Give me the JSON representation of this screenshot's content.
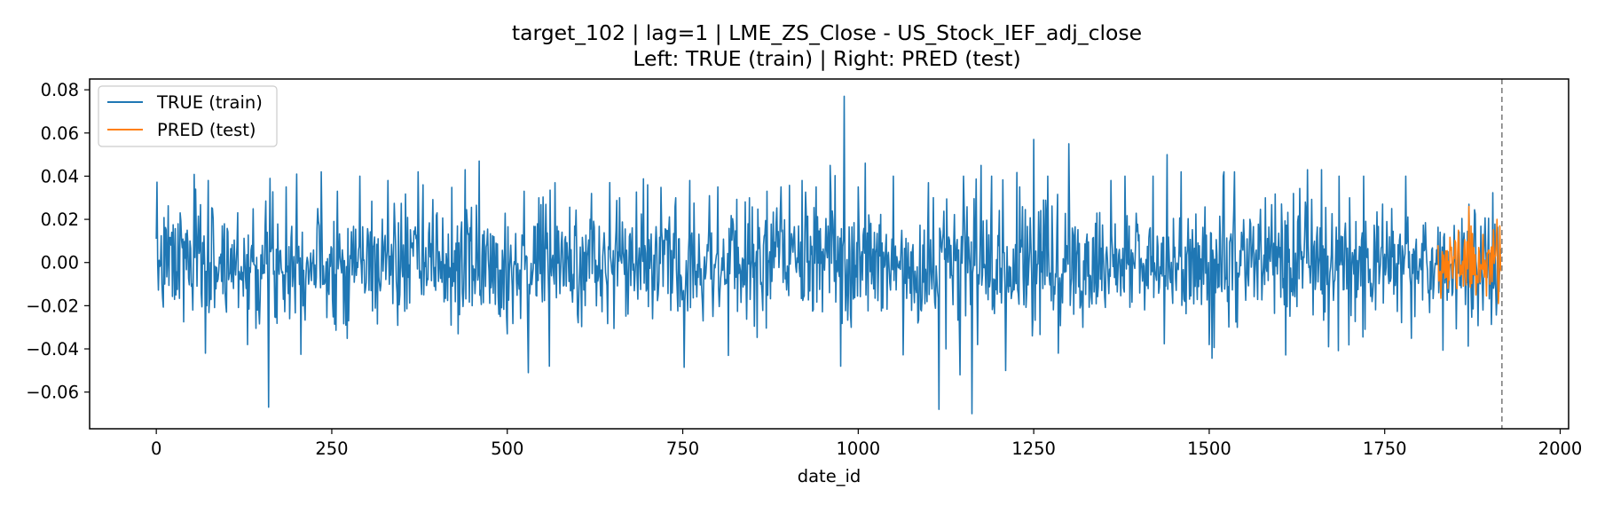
{
  "chart_data": {
    "type": "line",
    "title": "target_102 | lag=1 | LME_ZS_Close - US_Stock_IEF_adj_close",
    "subtitle": "Left: TRUE (train) | Right: PRED (test)",
    "xlabel": "date_id",
    "ylabel": "",
    "xlim": [
      -95,
      2012
    ],
    "ylim": [
      -0.077,
      0.085
    ],
    "x_ticks": [
      0,
      250,
      500,
      750,
      1000,
      1250,
      1500,
      1750,
      2000
    ],
    "x_tick_labels": [
      "0",
      "250",
      "500",
      "750",
      "1000",
      "1250",
      "1500",
      "1750",
      "2000"
    ],
    "y_ticks": [
      0.08,
      0.06,
      0.04,
      0.02,
      0.0,
      -0.02,
      -0.04,
      -0.06
    ],
    "y_tick_labels": [
      "0.08",
      "0.06",
      "0.04",
      "0.02",
      "0.00",
      "−0.02",
      "−0.04",
      "−0.06"
    ],
    "grid": false,
    "legend_position": "upper-left",
    "split_line_x": 1917,
    "series": [
      {
        "name": "TRUE (train)",
        "color": "#1f77b4",
        "x_range": [
          0,
          1916
        ],
        "noise_std": 0.0135,
        "seed": 7,
        "anchors": [
          [
            0,
            0.011
          ],
          [
            6,
            -0.001
          ],
          [
            12,
            -0.01
          ],
          [
            22,
            0.014
          ],
          [
            28,
            -0.015
          ],
          [
            34,
            0.023
          ],
          [
            44,
            0.015
          ],
          [
            52,
            -0.022
          ],
          [
            56,
            0.034
          ],
          [
            70,
            -0.042
          ],
          [
            74,
            0.038
          ],
          [
            100,
            -0.023
          ],
          [
            130,
            -0.038
          ],
          [
            160,
            -0.067
          ],
          [
            162,
            0.039
          ],
          [
            185,
            0.035
          ],
          [
            200,
            0.041
          ],
          [
            230,
            0.025
          ],
          [
            258,
            0.033
          ],
          [
            270,
            -0.029
          ],
          [
            290,
            0.04
          ],
          [
            330,
            0.038
          ],
          [
            380,
            0.036
          ],
          [
            400,
            0.023
          ],
          [
            420,
            -0.029
          ],
          [
            430,
            -0.033
          ],
          [
            440,
            0.043
          ],
          [
            450,
            -0.02
          ],
          [
            460,
            0.047
          ],
          [
            490,
            -0.025
          ],
          [
            500,
            -0.033
          ],
          [
            530,
            -0.051
          ],
          [
            545,
            0.03
          ],
          [
            560,
            -0.048
          ],
          [
            568,
            0.037
          ],
          [
            600,
            -0.024
          ],
          [
            620,
            0.032
          ],
          [
            660,
            0.03
          ],
          [
            700,
            0.036
          ],
          [
            740,
            0.03
          ],
          [
            760,
            0.038
          ],
          [
            800,
            0.035
          ],
          [
            815,
            -0.043
          ],
          [
            845,
            0.03
          ],
          [
            870,
            0.033
          ],
          [
            890,
            0.035
          ],
          [
            920,
            0.038
          ],
          [
            940,
            0.035
          ],
          [
            960,
            0.045
          ],
          [
            975,
            -0.048
          ],
          [
            980,
            0.077
          ],
          [
            990,
            -0.03
          ],
          [
            1000,
            0.035
          ],
          [
            1010,
            0.046
          ],
          [
            1050,
            0.04
          ],
          [
            1085,
            -0.028
          ],
          [
            1100,
            0.037
          ],
          [
            1115,
            -0.068
          ],
          [
            1125,
            -0.04
          ],
          [
            1145,
            -0.052
          ],
          [
            1150,
            0.04
          ],
          [
            1162,
            -0.07
          ],
          [
            1170,
            -0.038
          ],
          [
            1175,
            0.045
          ],
          [
            1190,
            0.04
          ],
          [
            1210,
            -0.05
          ],
          [
            1230,
            0.035
          ],
          [
            1250,
            0.057
          ],
          [
            1270,
            0.04
          ],
          [
            1285,
            -0.042
          ],
          [
            1300,
            0.055
          ],
          [
            1320,
            -0.03
          ],
          [
            1360,
            0.038
          ],
          [
            1380,
            0.04
          ],
          [
            1420,
            0.04
          ],
          [
            1440,
            0.05
          ],
          [
            1460,
            0.042
          ],
          [
            1500,
            -0.038
          ],
          [
            1520,
            0.04
          ],
          [
            1540,
            -0.03
          ],
          [
            1580,
            0.03
          ],
          [
            1620,
            0.032
          ],
          [
            1640,
            0.043
          ],
          [
            1660,
            0.043
          ],
          [
            1670,
            -0.039
          ],
          [
            1685,
            0.04
          ],
          [
            1700,
            0.03
          ],
          [
            1720,
            0.04
          ],
          [
            1760,
            0.025
          ],
          [
            1780,
            0.04
          ],
          [
            1830,
            -0.01
          ],
          [
            1870,
            0.027
          ],
          [
            1890,
            -0.022
          ],
          [
            1916,
            0.004
          ]
        ]
      },
      {
        "name": "PRED (test)",
        "color": "#ff7f0e",
        "x_range": [
          1826,
          1916
        ],
        "noise_std": 0.0075,
        "seed": 11,
        "anchors": [
          [
            1826,
            0.008
          ],
          [
            1840,
            -0.012
          ],
          [
            1855,
            0.015
          ],
          [
            1870,
            0.026
          ],
          [
            1880,
            -0.015
          ],
          [
            1890,
            0.013
          ],
          [
            1900,
            -0.01
          ],
          [
            1910,
            0.02
          ],
          [
            1912,
            -0.019
          ],
          [
            1916,
            -0.004
          ]
        ]
      }
    ]
  }
}
